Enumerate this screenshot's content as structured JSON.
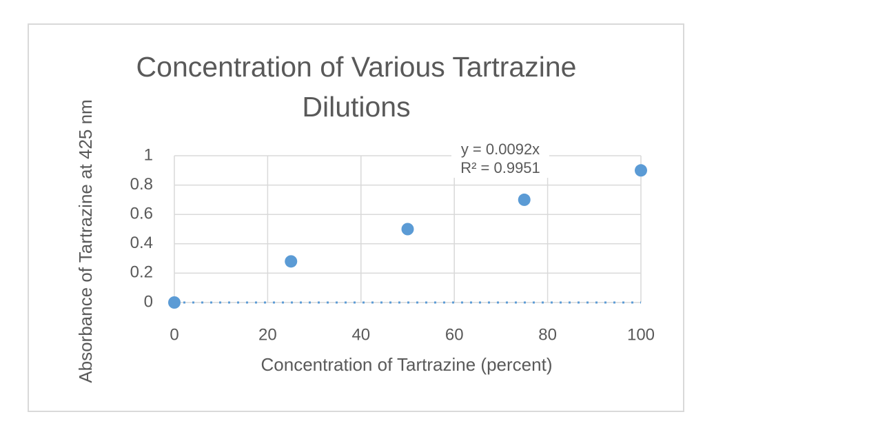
{
  "chart_data": {
    "type": "scatter",
    "title": "Concentration of Various Tartrazine Dilutions",
    "x_label": "Concentration of Tartrazine (percent)",
    "y_label": "Absorbance of Tartrazine at 425 nm",
    "x": [
      0,
      25,
      50,
      75,
      100
    ],
    "values": [
      0,
      0.28,
      0.5,
      0.7,
      0.9
    ],
    "color": "#5b9bd5",
    "xlim": [
      0,
      100
    ],
    "xticks": [
      0,
      20,
      40,
      60,
      80,
      100
    ],
    "ylim": [
      0,
      1
    ],
    "yticks": [
      0,
      0.2,
      0.4,
      0.6,
      0.8,
      1
    ],
    "grid": true,
    "annotations": [
      "y = 0.0092x",
      "R² = 0.9951"
    ]
  }
}
